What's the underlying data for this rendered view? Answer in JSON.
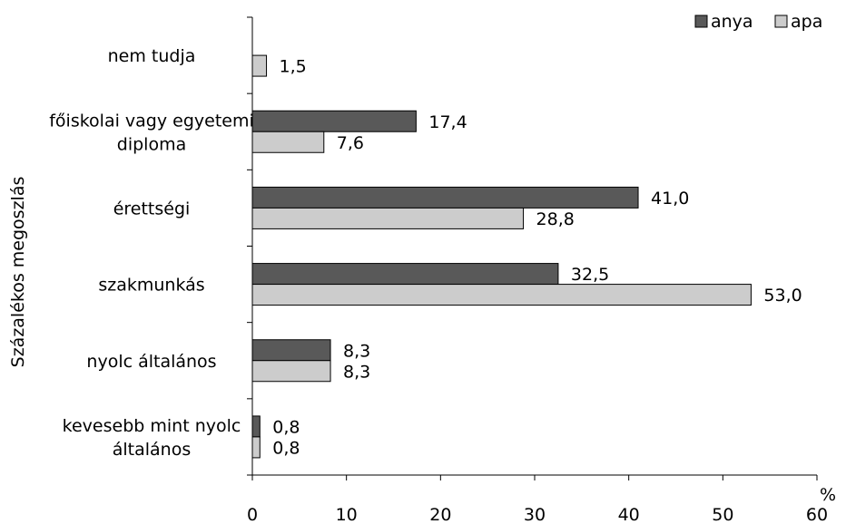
{
  "chart_data": {
    "type": "bar",
    "orientation": "horizontal",
    "ylabel": "Százalékos megoszlás",
    "xunit": "%",
    "xlim": [
      0,
      60
    ],
    "xticks": [
      "0",
      "10",
      "20",
      "30",
      "40",
      "50",
      "60"
    ],
    "legend_position": "top-right",
    "grid": false,
    "categories": [
      [
        "nem tudja"
      ],
      [
        "főiskolai vagy egyetemi",
        "diploma"
      ],
      [
        "érettségi"
      ],
      [
        "szakmunkás"
      ],
      [
        "nyolc általános"
      ],
      [
        "kevesebb mint nyolc",
        "általános"
      ]
    ],
    "series": [
      {
        "name": "anya",
        "color": "#595959",
        "values": [
          null,
          17.4,
          41.0,
          32.5,
          8.3,
          0.8
        ],
        "labels": [
          "",
          "17,4",
          "41,0",
          "32,5",
          "8,3",
          "0,8"
        ]
      },
      {
        "name": "apa",
        "color": "#cccccc",
        "values": [
          1.5,
          7.6,
          28.8,
          53.0,
          8.3,
          0.8
        ],
        "labels": [
          "1,5",
          "7,6",
          "28,8",
          "53,0",
          "8,3",
          "0,8"
        ]
      }
    ]
  }
}
